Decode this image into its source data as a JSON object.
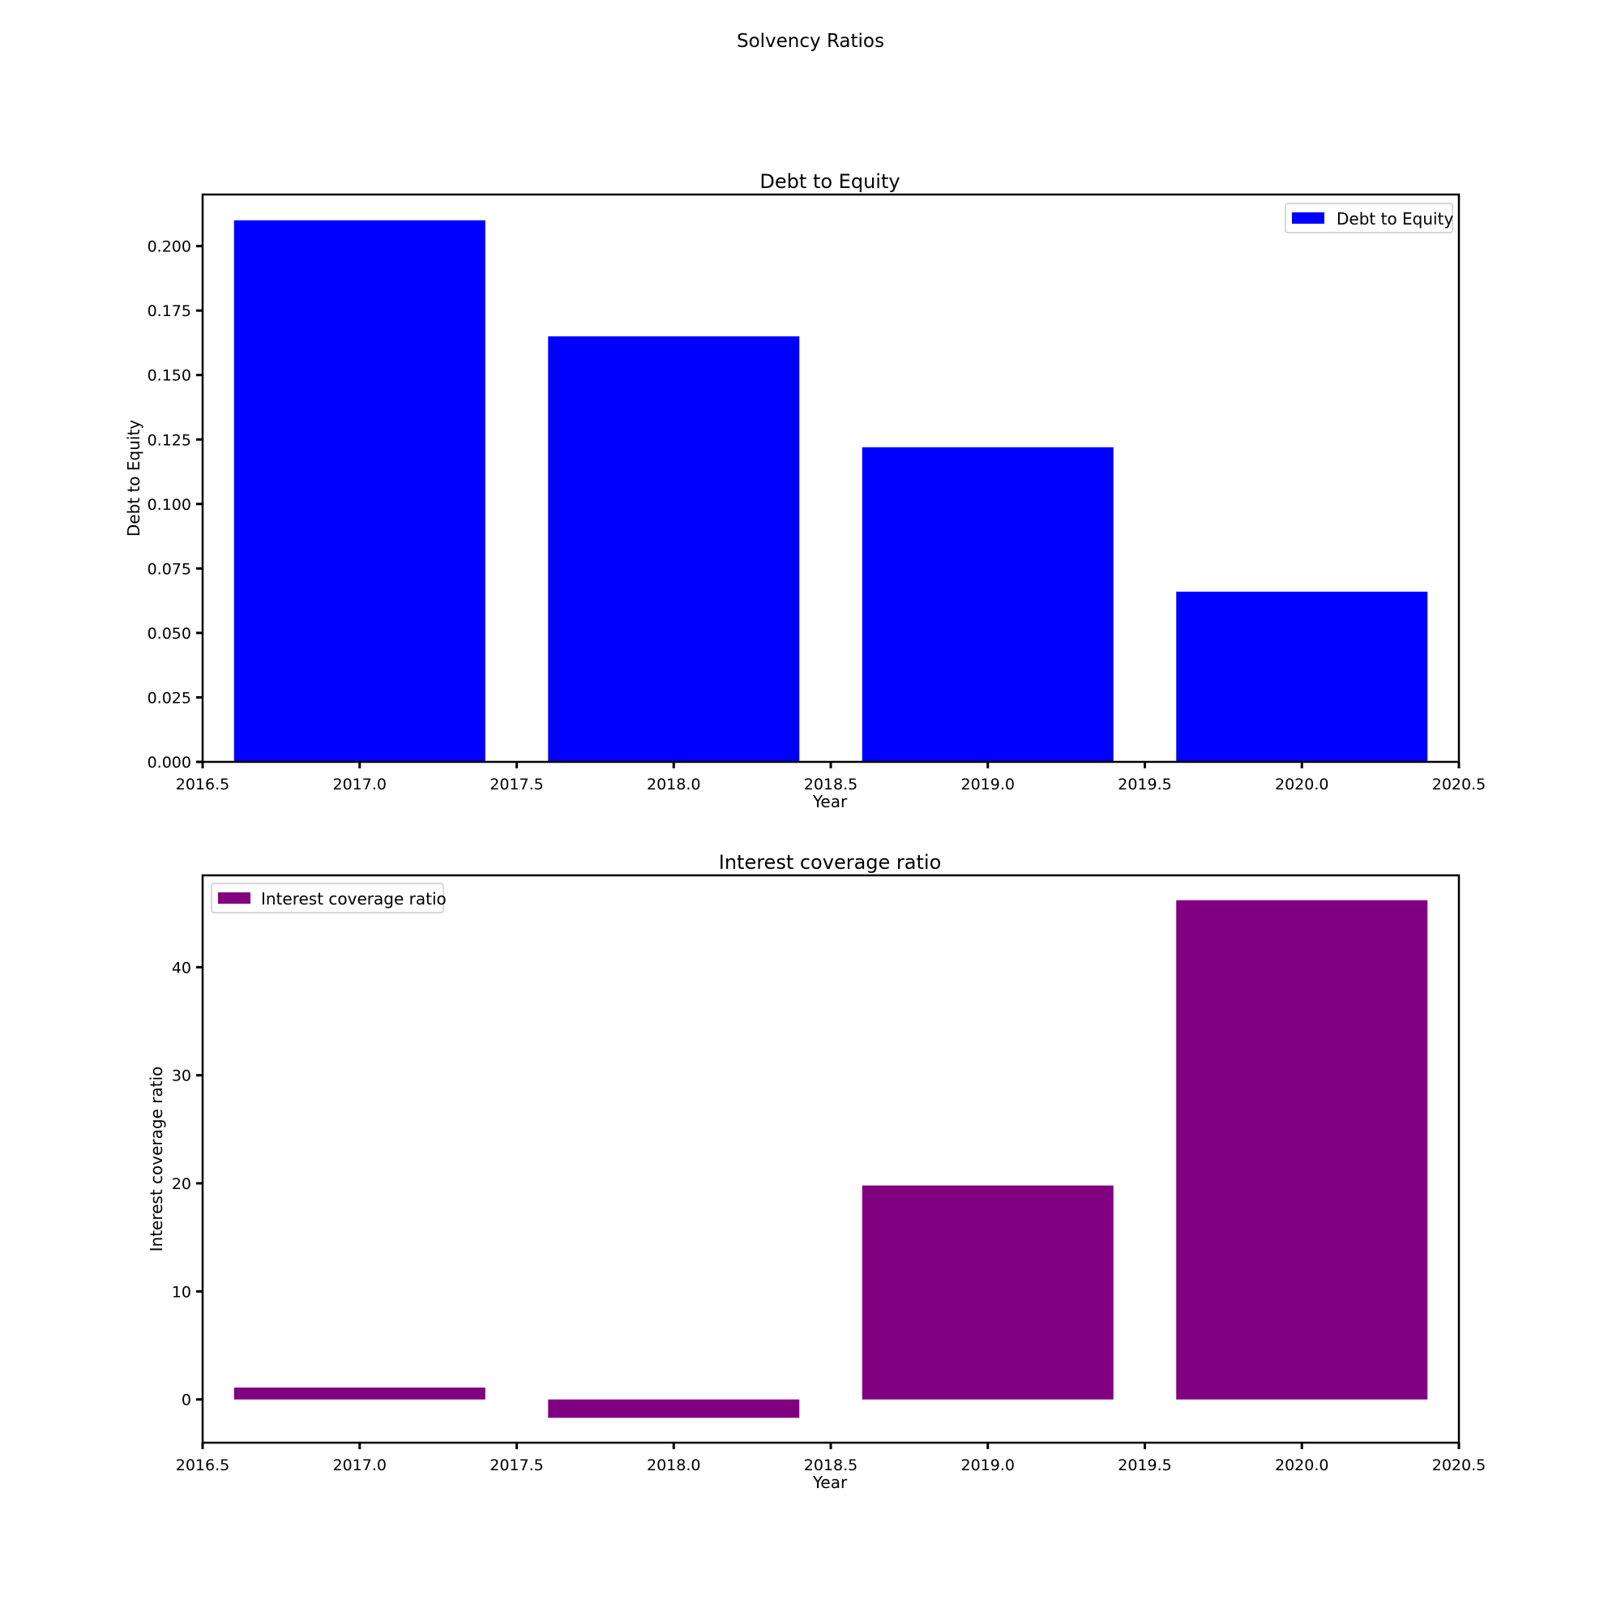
{
  "figure": {
    "suptitle": "Solvency Ratios"
  },
  "chart_data": [
    {
      "type": "bar",
      "title": "Debt to Equity",
      "xlabel": "Year",
      "ylabel": "Debt to Equity",
      "x": [
        2017,
        2018,
        2019,
        2020
      ],
      "series": [
        {
          "name": "Debt to Equity",
          "values": [
            0.21,
            0.165,
            0.122,
            0.066
          ],
          "color": "#0000ff"
        }
      ],
      "xlim": [
        2016.5,
        2020.5
      ],
      "ylim": [
        0,
        0.22
      ],
      "xticks": [
        "2016.5",
        "2017.0",
        "2017.5",
        "2018.0",
        "2018.5",
        "2019.0",
        "2019.5",
        "2020.0",
        "2020.5"
      ],
      "yticks": [
        "0.000",
        "0.025",
        "0.050",
        "0.075",
        "0.100",
        "0.125",
        "0.150",
        "0.175",
        "0.200"
      ],
      "legend": "upper right",
      "grid": false
    },
    {
      "type": "bar",
      "title": "Interest coverage ratio",
      "xlabel": "Year",
      "ylabel": "Interest coverage ratio",
      "x": [
        2017,
        2018,
        2019,
        2020
      ],
      "series": [
        {
          "name": "Interest coverage ratio",
          "values": [
            1.1,
            -1.7,
            19.8,
            46.2
          ],
          "color": "#800080"
        }
      ],
      "xlim": [
        2016.5,
        2020.5
      ],
      "ylim": [
        -4,
        48.5
      ],
      "xticks": [
        "2016.5",
        "2017.0",
        "2017.5",
        "2018.0",
        "2018.5",
        "2019.0",
        "2019.5",
        "2020.0",
        "2020.5"
      ],
      "yticks": [
        "0",
        "10",
        "20",
        "30",
        "40"
      ],
      "legend": "upper left",
      "grid": false
    }
  ]
}
